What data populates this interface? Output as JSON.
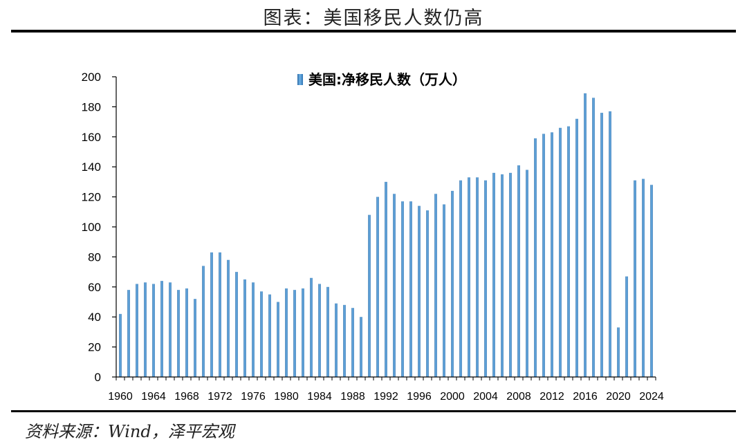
{
  "header": {
    "title": "图表：美国移民人数仍高"
  },
  "footer": {
    "source": "资料来源：Wind，泽平宏观"
  },
  "chart_data": {
    "type": "bar",
    "title": "",
    "xlabel": "",
    "ylabel": "",
    "ylim": [
      0,
      200
    ],
    "yticks": [
      0,
      20,
      40,
      60,
      80,
      100,
      120,
      140,
      160,
      180,
      200
    ],
    "grid": false,
    "legend": {
      "position": "top-center"
    },
    "x_tick_labels": [
      "1960",
      "1964",
      "1968",
      "1972",
      "1976",
      "1980",
      "1984",
      "1988",
      "1992",
      "1996",
      "2000",
      "2004",
      "2008",
      "2012",
      "2016",
      "2020",
      "2024"
    ],
    "categories": [
      "1960",
      "1961",
      "1962",
      "1963",
      "1964",
      "1965",
      "1966",
      "1967",
      "1968",
      "1969",
      "1970",
      "1971",
      "1972",
      "1973",
      "1974",
      "1975",
      "1976",
      "1977",
      "1978",
      "1979",
      "1980",
      "1981",
      "1982",
      "1983",
      "1984",
      "1985",
      "1986",
      "1987",
      "1988",
      "1989",
      "1990",
      "1991",
      "1992",
      "1993",
      "1994",
      "1995",
      "1996",
      "1997",
      "1998",
      "1999",
      "2000",
      "2001",
      "2002",
      "2003",
      "2004",
      "2005",
      "2006",
      "2007",
      "2008",
      "2009",
      "2010",
      "2011",
      "2012",
      "2013",
      "2014",
      "2015",
      "2016",
      "2017",
      "2018",
      "2019",
      "2020",
      "2021",
      "2022",
      "2023",
      "2024"
    ],
    "series": [
      {
        "name": "美国:净移民人数（万人）",
        "color": "#4a90c8",
        "values": [
          42,
          58,
          62,
          63,
          62,
          64,
          63,
          58,
          59,
          52,
          74,
          83,
          83,
          78,
          70,
          65,
          63,
          57,
          55,
          50,
          59,
          58,
          59,
          66,
          62,
          60,
          49,
          48,
          46,
          40,
          108,
          120,
          130,
          122,
          117,
          117,
          114,
          111,
          122,
          115,
          124,
          131,
          133,
          133,
          131,
          136,
          135,
          136,
          141,
          138,
          159,
          162,
          163,
          166,
          167,
          172,
          189,
          186,
          176,
          177,
          33,
          67,
          131,
          132,
          128
        ]
      }
    ]
  }
}
